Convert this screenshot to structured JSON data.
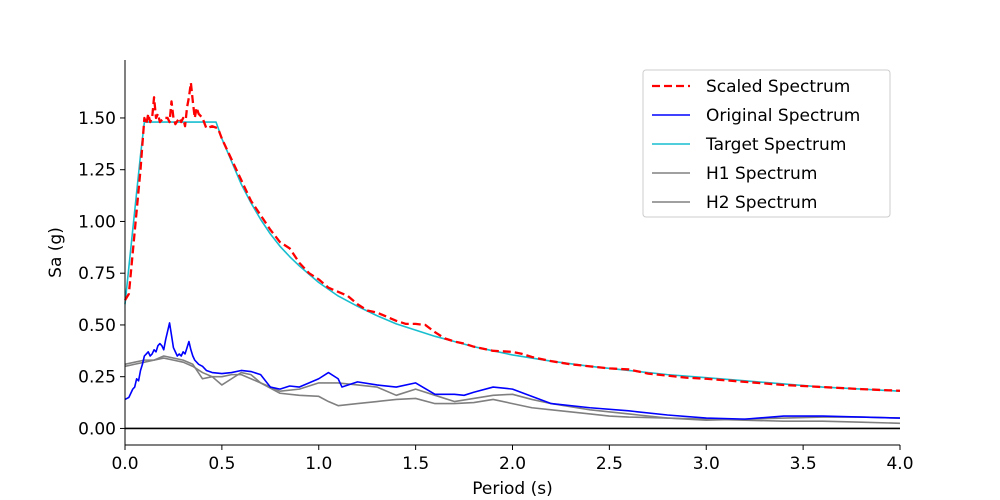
{
  "chart_data": {
    "type": "line",
    "title": "",
    "xlabel": "Period (s)",
    "ylabel": "Sa (g)",
    "xlim": [
      0.0,
      4.0
    ],
    "ylim": [
      -0.08,
      1.78
    ],
    "x_ticks": [
      0.0,
      0.5,
      1.0,
      1.5,
      2.0,
      2.5,
      3.0,
      3.5,
      4.0
    ],
    "x_tick_labels": [
      "0.0",
      "0.5",
      "1.0",
      "1.5",
      "2.0",
      "2.5",
      "3.0",
      "3.5",
      "4.0"
    ],
    "y_ticks": [
      0.0,
      0.25,
      0.5,
      0.75,
      1.0,
      1.25,
      1.5
    ],
    "y_tick_labels": [
      "0.00",
      "0.25",
      "0.50",
      "0.75",
      "1.00",
      "1.25",
      "1.50"
    ],
    "zero_line": true,
    "grid": false,
    "legend_position": "upper right",
    "series": [
      {
        "name": "Scaled Spectrum",
        "color": "#ff0000",
        "dashed": true,
        "points": [
          [
            0.0,
            0.62
          ],
          [
            0.02,
            0.65
          ],
          [
            0.04,
            0.85
          ],
          [
            0.06,
            1.05
          ],
          [
            0.08,
            1.25
          ],
          [
            0.1,
            1.5
          ],
          [
            0.11,
            1.47
          ],
          [
            0.12,
            1.52
          ],
          [
            0.13,
            1.48
          ],
          [
            0.14,
            1.5
          ],
          [
            0.15,
            1.6
          ],
          [
            0.16,
            1.5
          ],
          [
            0.17,
            1.52
          ],
          [
            0.18,
            1.48
          ],
          [
            0.2,
            1.5
          ],
          [
            0.22,
            1.5
          ],
          [
            0.23,
            1.48
          ],
          [
            0.24,
            1.58
          ],
          [
            0.25,
            1.5
          ],
          [
            0.26,
            1.47
          ],
          [
            0.28,
            1.5
          ],
          [
            0.29,
            1.48
          ],
          [
            0.3,
            1.5
          ],
          [
            0.31,
            1.46
          ],
          [
            0.32,
            1.55
          ],
          [
            0.33,
            1.6
          ],
          [
            0.34,
            1.67
          ],
          [
            0.35,
            1.58
          ],
          [
            0.36,
            1.5
          ],
          [
            0.37,
            1.55
          ],
          [
            0.38,
            1.52
          ],
          [
            0.4,
            1.5
          ],
          [
            0.42,
            1.45
          ],
          [
            0.45,
            1.46
          ],
          [
            0.48,
            1.45
          ],
          [
            0.5,
            1.4
          ],
          [
            0.55,
            1.3
          ],
          [
            0.6,
            1.2
          ],
          [
            0.65,
            1.1
          ],
          [
            0.7,
            1.03
          ],
          [
            0.75,
            0.96
          ],
          [
            0.8,
            0.9
          ],
          [
            0.85,
            0.87
          ],
          [
            0.9,
            0.8
          ],
          [
            0.95,
            0.75
          ],
          [
            1.0,
            0.72
          ],
          [
            1.05,
            0.68
          ],
          [
            1.1,
            0.66
          ],
          [
            1.15,
            0.64
          ],
          [
            1.2,
            0.6
          ],
          [
            1.25,
            0.57
          ],
          [
            1.3,
            0.56
          ],
          [
            1.35,
            0.54
          ],
          [
            1.4,
            0.52
          ],
          [
            1.45,
            0.505
          ],
          [
            1.5,
            0.505
          ],
          [
            1.55,
            0.5
          ],
          [
            1.6,
            0.465
          ],
          [
            1.65,
            0.435
          ],
          [
            1.7,
            0.42
          ],
          [
            1.75,
            0.41
          ],
          [
            1.8,
            0.395
          ],
          [
            1.9,
            0.375
          ],
          [
            2.0,
            0.37
          ],
          [
            2.05,
            0.36
          ],
          [
            2.1,
            0.345
          ],
          [
            2.2,
            0.325
          ],
          [
            2.3,
            0.31
          ],
          [
            2.4,
            0.3
          ],
          [
            2.5,
            0.29
          ],
          [
            2.6,
            0.285
          ],
          [
            2.7,
            0.265
          ],
          [
            2.8,
            0.255
          ],
          [
            2.9,
            0.245
          ],
          [
            3.0,
            0.24
          ],
          [
            3.2,
            0.225
          ],
          [
            3.4,
            0.21
          ],
          [
            3.6,
            0.2
          ],
          [
            3.8,
            0.19
          ],
          [
            4.0,
            0.182
          ]
        ]
      },
      {
        "name": "Original Spectrum",
        "color": "#0000ff",
        "dashed": false,
        "points": [
          [
            0.0,
            0.14
          ],
          [
            0.02,
            0.15
          ],
          [
            0.04,
            0.19
          ],
          [
            0.05,
            0.2
          ],
          [
            0.06,
            0.24
          ],
          [
            0.07,
            0.23
          ],
          [
            0.08,
            0.28
          ],
          [
            0.09,
            0.31
          ],
          [
            0.1,
            0.35
          ],
          [
            0.11,
            0.36
          ],
          [
            0.12,
            0.37
          ],
          [
            0.13,
            0.35
          ],
          [
            0.14,
            0.36
          ],
          [
            0.15,
            0.38
          ],
          [
            0.16,
            0.37
          ],
          [
            0.17,
            0.4
          ],
          [
            0.18,
            0.41
          ],
          [
            0.19,
            0.4
          ],
          [
            0.2,
            0.38
          ],
          [
            0.21,
            0.43
          ],
          [
            0.22,
            0.47
          ],
          [
            0.23,
            0.51
          ],
          [
            0.24,
            0.45
          ],
          [
            0.25,
            0.39
          ],
          [
            0.26,
            0.37
          ],
          [
            0.27,
            0.35
          ],
          [
            0.28,
            0.36
          ],
          [
            0.29,
            0.35
          ],
          [
            0.3,
            0.37
          ],
          [
            0.31,
            0.36
          ],
          [
            0.32,
            0.39
          ],
          [
            0.33,
            0.42
          ],
          [
            0.34,
            0.38
          ],
          [
            0.35,
            0.35
          ],
          [
            0.36,
            0.33
          ],
          [
            0.38,
            0.31
          ],
          [
            0.4,
            0.3
          ],
          [
            0.42,
            0.28
          ],
          [
            0.45,
            0.27
          ],
          [
            0.5,
            0.265
          ],
          [
            0.55,
            0.27
          ],
          [
            0.6,
            0.28
          ],
          [
            0.65,
            0.275
          ],
          [
            0.7,
            0.26
          ],
          [
            0.75,
            0.2
          ],
          [
            0.8,
            0.19
          ],
          [
            0.85,
            0.205
          ],
          [
            0.9,
            0.2
          ],
          [
            1.0,
            0.24
          ],
          [
            1.05,
            0.27
          ],
          [
            1.1,
            0.24
          ],
          [
            1.12,
            0.2
          ],
          [
            1.2,
            0.225
          ],
          [
            1.3,
            0.21
          ],
          [
            1.4,
            0.2
          ],
          [
            1.5,
            0.22
          ],
          [
            1.6,
            0.165
          ],
          [
            1.7,
            0.165
          ],
          [
            1.75,
            0.16
          ],
          [
            1.8,
            0.175
          ],
          [
            1.9,
            0.2
          ],
          [
            2.0,
            0.19
          ],
          [
            2.1,
            0.155
          ],
          [
            2.2,
            0.12
          ],
          [
            2.4,
            0.1
          ],
          [
            2.6,
            0.085
          ],
          [
            2.8,
            0.065
          ],
          [
            3.0,
            0.05
          ],
          [
            3.2,
            0.045
          ],
          [
            3.4,
            0.06
          ],
          [
            3.6,
            0.06
          ],
          [
            3.8,
            0.055
          ],
          [
            4.0,
            0.05
          ]
        ]
      },
      {
        "name": "Target Spectrum",
        "color": "#17becf",
        "dashed": false,
        "points": [
          [
            0.0,
            0.6
          ],
          [
            0.02,
            0.78
          ],
          [
            0.04,
            0.96
          ],
          [
            0.06,
            1.14
          ],
          [
            0.08,
            1.32
          ],
          [
            0.1,
            1.48
          ],
          [
            0.47,
            1.48
          ],
          [
            0.5,
            1.4
          ],
          [
            0.55,
            1.29
          ],
          [
            0.6,
            1.18
          ],
          [
            0.65,
            1.09
          ],
          [
            0.7,
            1.01
          ],
          [
            0.75,
            0.94
          ],
          [
            0.8,
            0.88
          ],
          [
            0.85,
            0.83
          ],
          [
            0.9,
            0.785
          ],
          [
            0.95,
            0.745
          ],
          [
            1.0,
            0.705
          ],
          [
            1.1,
            0.64
          ],
          [
            1.2,
            0.59
          ],
          [
            1.3,
            0.545
          ],
          [
            1.4,
            0.505
          ],
          [
            1.5,
            0.475
          ],
          [
            1.6,
            0.445
          ],
          [
            1.7,
            0.42
          ],
          [
            1.8,
            0.395
          ],
          [
            1.9,
            0.375
          ],
          [
            2.0,
            0.355
          ],
          [
            2.2,
            0.325
          ],
          [
            2.4,
            0.3
          ],
          [
            2.6,
            0.28
          ],
          [
            2.8,
            0.26
          ],
          [
            3.0,
            0.245
          ],
          [
            3.2,
            0.23
          ],
          [
            3.4,
            0.215
          ],
          [
            3.6,
            0.2
          ],
          [
            3.8,
            0.19
          ],
          [
            4.0,
            0.18
          ]
        ]
      },
      {
        "name": "H1 Spectrum",
        "color": "#808080",
        "dashed": false,
        "points": [
          [
            0.0,
            0.31
          ],
          [
            0.05,
            0.32
          ],
          [
            0.1,
            0.33
          ],
          [
            0.15,
            0.33
          ],
          [
            0.2,
            0.35
          ],
          [
            0.25,
            0.34
          ],
          [
            0.3,
            0.33
          ],
          [
            0.35,
            0.31
          ],
          [
            0.4,
            0.24
          ],
          [
            0.45,
            0.25
          ],
          [
            0.5,
            0.21
          ],
          [
            0.55,
            0.24
          ],
          [
            0.6,
            0.27
          ],
          [
            0.65,
            0.26
          ],
          [
            0.7,
            0.22
          ],
          [
            0.75,
            0.2
          ],
          [
            0.8,
            0.18
          ],
          [
            0.9,
            0.19
          ],
          [
            1.0,
            0.22
          ],
          [
            1.1,
            0.22
          ],
          [
            1.2,
            0.21
          ],
          [
            1.3,
            0.2
          ],
          [
            1.4,
            0.16
          ],
          [
            1.5,
            0.19
          ],
          [
            1.6,
            0.16
          ],
          [
            1.7,
            0.13
          ],
          [
            1.8,
            0.145
          ],
          [
            1.9,
            0.16
          ],
          [
            2.0,
            0.165
          ],
          [
            2.1,
            0.14
          ],
          [
            2.2,
            0.12
          ],
          [
            2.4,
            0.09
          ],
          [
            2.6,
            0.07
          ],
          [
            2.8,
            0.05
          ],
          [
            3.0,
            0.04
          ],
          [
            3.2,
            0.045
          ],
          [
            3.4,
            0.05
          ],
          [
            3.6,
            0.055
          ],
          [
            3.8,
            0.055
          ],
          [
            4.0,
            0.05
          ]
        ]
      },
      {
        "name": "H2 Spectrum",
        "color": "#808080",
        "dashed": false,
        "points": [
          [
            0.0,
            0.3
          ],
          [
            0.05,
            0.31
          ],
          [
            0.1,
            0.32
          ],
          [
            0.15,
            0.33
          ],
          [
            0.2,
            0.34
          ],
          [
            0.25,
            0.33
          ],
          [
            0.3,
            0.32
          ],
          [
            0.35,
            0.3
          ],
          [
            0.4,
            0.27
          ],
          [
            0.45,
            0.25
          ],
          [
            0.5,
            0.25
          ],
          [
            0.55,
            0.26
          ],
          [
            0.6,
            0.26
          ],
          [
            0.7,
            0.22
          ],
          [
            0.8,
            0.17
          ],
          [
            0.9,
            0.16
          ],
          [
            1.0,
            0.155
          ],
          [
            1.05,
            0.13
          ],
          [
            1.1,
            0.11
          ],
          [
            1.2,
            0.12
          ],
          [
            1.3,
            0.13
          ],
          [
            1.4,
            0.14
          ],
          [
            1.5,
            0.145
          ],
          [
            1.6,
            0.12
          ],
          [
            1.7,
            0.12
          ],
          [
            1.8,
            0.125
          ],
          [
            1.9,
            0.14
          ],
          [
            2.0,
            0.12
          ],
          [
            2.1,
            0.1
          ],
          [
            2.2,
            0.09
          ],
          [
            2.4,
            0.07
          ],
          [
            2.5,
            0.06
          ],
          [
            2.6,
            0.055
          ],
          [
            2.8,
            0.05
          ],
          [
            3.0,
            0.045
          ],
          [
            3.2,
            0.04
          ],
          [
            3.4,
            0.035
          ],
          [
            3.6,
            0.035
          ],
          [
            3.8,
            0.03
          ],
          [
            4.0,
            0.025
          ]
        ]
      }
    ]
  }
}
